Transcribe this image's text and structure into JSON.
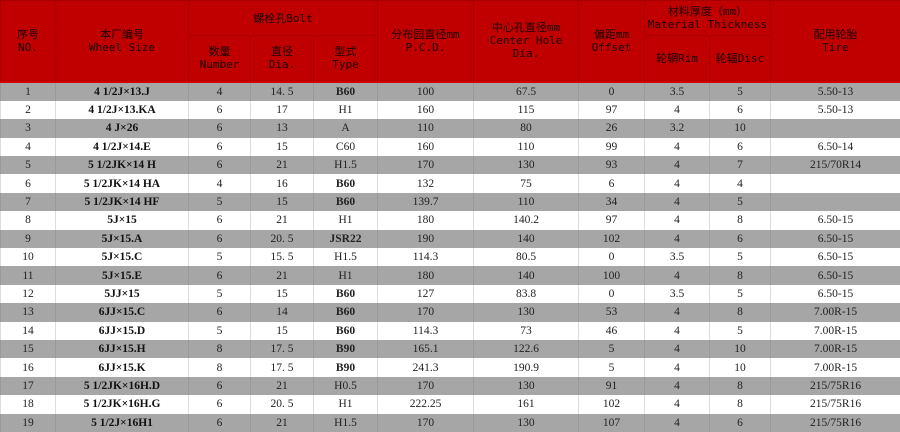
{
  "header": {
    "no": {
      "cn": "序号",
      "en": "NO."
    },
    "wheel_size": {
      "cn": "本厂编号",
      "en": "Wheel Size"
    },
    "bolt": {
      "label": "螺栓孔Bolt",
      "number": {
        "cn": "数量",
        "en": "Number"
      },
      "dia": {
        "cn": "直径",
        "en": "Dia."
      },
      "type": {
        "cn": "型式",
        "en": "Type"
      }
    },
    "pcd": {
      "cn": "分布园直径mm",
      "en": "P.C.D."
    },
    "center_hole": {
      "cn": "中心孔直径mm",
      "en1": "Center Hole",
      "en2": "Dia."
    },
    "offset": {
      "cn": "偏距mm",
      "en": "Offset"
    },
    "thickness": {
      "cn": "材料厚度（mm）",
      "en": "Material Thickness",
      "rim": "轮辋Rim",
      "disc": "轮辐Disc"
    },
    "tire": {
      "cn": "配用轮胎",
      "en": "Tire"
    }
  },
  "colors": {
    "header_bg": "#c00000",
    "stripe_bg": "#a6a6a6"
  },
  "rows": [
    [
      "1",
      "4 1/2J×13.J",
      "4",
      "14. 5",
      "B60",
      "100",
      "67.5",
      "0",
      "3.5",
      "5",
      "5.50-13"
    ],
    [
      "2",
      "4 1/2J×13.KA",
      "6",
      "17",
      "H1",
      "160",
      "115",
      "97",
      "4",
      "6",
      "5.50-13"
    ],
    [
      "3",
      "4 J×26",
      "6",
      "13",
      "A",
      "110",
      "80",
      "26",
      "3.2",
      "10",
      ""
    ],
    [
      "4",
      "4 1/2J×14.E",
      "6",
      "15",
      "C60",
      "160",
      "110",
      "99",
      "4",
      "6",
      "6.50-14"
    ],
    [
      "5",
      "5 1/2JK×14 H",
      "6",
      "21",
      "H1.5",
      "170",
      "130",
      "93",
      "4",
      "7",
      "215/70R14"
    ],
    [
      "6",
      "5 1/2JK×14 HA",
      "4",
      "16",
      "B60",
      "132",
      "75",
      "6",
      "4",
      "4",
      ""
    ],
    [
      "7",
      "5 1/2JK×14 HF",
      "5",
      "15",
      "B60",
      "139.7",
      "110",
      "34",
      "4",
      "5",
      ""
    ],
    [
      "8",
      "5J×15",
      "6",
      "21",
      "H1",
      "180",
      "140.2",
      "97",
      "4",
      "8",
      "6.50-15"
    ],
    [
      "9",
      "5J×15.A",
      "6",
      "20. 5",
      "JSR22",
      "190",
      "140",
      "102",
      "4",
      "6",
      "6.50-15"
    ],
    [
      "10",
      "5J×15.C",
      "5",
      "15. 5",
      "H1.5",
      "114.3",
      "80.5",
      "0",
      "3.5",
      "5",
      "6.50-15"
    ],
    [
      "11",
      "5J×15.E",
      "6",
      "21",
      "H1",
      "180",
      "140",
      "100",
      "4",
      "8",
      "6.50-15"
    ],
    [
      "12",
      "5JJ×15",
      "5",
      "15",
      "B60",
      "127",
      "83.8",
      "0",
      "3.5",
      "5",
      "6.50-15"
    ],
    [
      "13",
      "6JJ×15.C",
      "6",
      "14",
      "B60",
      "170",
      "130",
      "53",
      "4",
      "8",
      "7.00R-15"
    ],
    [
      "14",
      "6JJ×15.D",
      "5",
      "15",
      "B60",
      "114.3",
      "73",
      "46",
      "4",
      "5",
      "7.00R-15"
    ],
    [
      "15",
      "6JJ×15.H",
      "8",
      "17. 5",
      "B90",
      "165.1",
      "122.6",
      "5",
      "4",
      "10",
      "7.00R-15"
    ],
    [
      "16",
      "6JJ×15.K",
      "8",
      "17. 5",
      "B90",
      "241.3",
      "190.9",
      "5",
      "4",
      "10",
      "7.00R-15"
    ],
    [
      "17",
      "5 1/2JK×16H.D",
      "6",
      "21",
      "H0.5",
      "170",
      "130",
      "91",
      "4",
      "8",
      "215/75R16"
    ],
    [
      "18",
      "5 1/2JK×16H.G",
      "6",
      "20. 5",
      "H1",
      "222.25",
      "161",
      "102",
      "4",
      "8",
      "215/75R16"
    ],
    [
      "19",
      "5 1/2J×16H1",
      "6",
      "21",
      "H1.5",
      "170",
      "130",
      "107",
      "4",
      "6",
      "215/75R16"
    ]
  ]
}
